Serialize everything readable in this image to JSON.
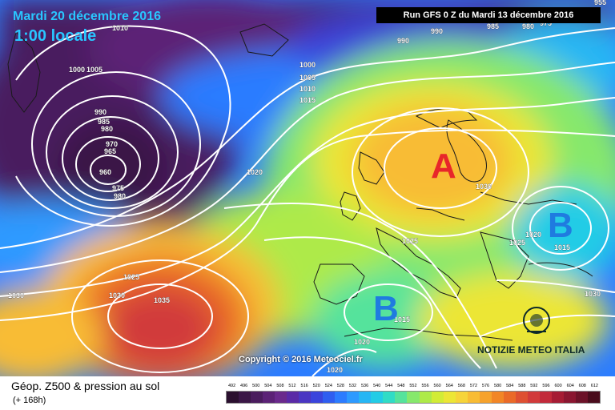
{
  "header": {
    "date_label": "Mardi 20 décembre 2016",
    "time_label": "1:00 locale",
    "run_label": "Run GFS 0 Z du Mardi 13 décembre 2016"
  },
  "footer": {
    "parameter_title": "Géop. Z500 & pression au sol",
    "forecast_hour": "(+ 168h)",
    "copyright": "Copyright © 2016 Meteociel.fr",
    "watermark": "NOTIZIE METEO ITALIA"
  },
  "legend": {
    "values": [
      "492",
      "496",
      "500",
      "504",
      "508",
      "512",
      "516",
      "520",
      "524",
      "528",
      "532",
      "536",
      "540",
      "544",
      "548",
      "552",
      "556",
      "560",
      "564",
      "568",
      "572",
      "576",
      "580",
      "584",
      "588",
      "592",
      "596",
      "600",
      "604",
      "608",
      "612"
    ],
    "colors": [
      "#2a0f2e",
      "#3a1646",
      "#4a1c5e",
      "#5b2276",
      "#6a2a8c",
      "#5a2aa6",
      "#4a36c2",
      "#3a44dc",
      "#2f5ef0",
      "#2c7cff",
      "#2d9aff",
      "#26b6f4",
      "#22cce6",
      "#30dcc6",
      "#55e39c",
      "#86e86c",
      "#aeea48",
      "#d2ec36",
      "#ece636",
      "#f6d43a",
      "#f8bc34",
      "#f6a22c",
      "#f28626",
      "#ea6a28",
      "#de5032",
      "#d13a3a",
      "#c22a3a",
      "#a61c34",
      "#8a1630",
      "#6c1228",
      "#4a0c1c"
    ]
  },
  "pressure_centers": [
    {
      "type": "A",
      "label": "A"
    },
    {
      "type": "B",
      "label": "B"
    },
    {
      "type": "B",
      "label": "B"
    }
  ],
  "isobar_labels": [
    "955",
    "1010",
    "1000",
    "1005",
    "990",
    "985",
    "980",
    "975",
    "970",
    "965",
    "960",
    "1015",
    "1020",
    "1025",
    "1030",
    "1035"
  ]
}
